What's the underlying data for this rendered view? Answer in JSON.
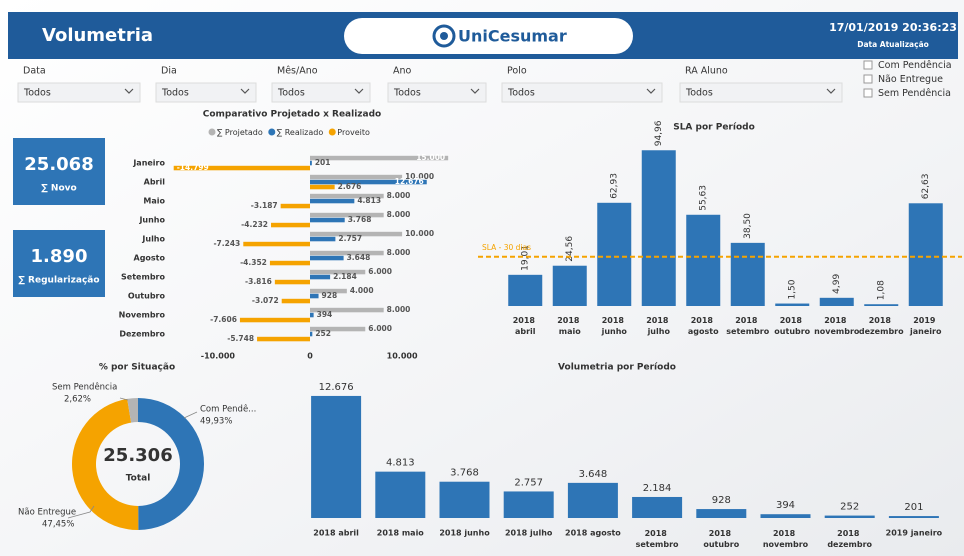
{
  "header": {
    "title": "Volumetria",
    "logo": "UniCesumar",
    "updated": "17/01/2019 20:36:23",
    "updated_label": "Data Atualização"
  },
  "filters": [
    {
      "label": "Data",
      "value": "Todos"
    },
    {
      "label": "Dia",
      "value": "Todos"
    },
    {
      "label": "Mês/Ano",
      "value": "Todos"
    },
    {
      "label": "Ano",
      "value": "Todos"
    },
    {
      "label": "Polo",
      "value": "Todos"
    },
    {
      "label": "RA Aluno",
      "value": "Todos"
    }
  ],
  "checkboxes": [
    "Com Pendência",
    "Não Entregue",
    "Sem Pendência"
  ],
  "kpis": [
    {
      "value": "25.068",
      "label": "∑ Novo"
    },
    {
      "value": "1.890",
      "label": "∑ Regularização"
    }
  ],
  "chart_data": [
    {
      "type": "bar",
      "orientation": "horizontal",
      "title": "Comparativo Projetado x Realizado",
      "categories": [
        "Janeiro",
        "Abril",
        "Maio",
        "Junho",
        "Julho",
        "Agosto",
        "Setembro",
        "Outubro",
        "Novembro",
        "Dezembro"
      ],
      "series": [
        {
          "name": "∑ Projetado",
          "color": "#b4b4b4",
          "values": [
            15000,
            10000,
            8000,
            8000,
            10000,
            8000,
            6000,
            4000,
            8000,
            6000
          ],
          "value_labels": [
            "15.000",
            "10.000",
            "8.000",
            "8.000",
            "10.000",
            "8.000",
            "6.000",
            "4.000",
            "8.000",
            "6.000"
          ]
        },
        {
          "name": "∑ Realizado",
          "color": "#2e75b6",
          "values": [
            201,
            12676,
            4813,
            3768,
            2757,
            3648,
            2184,
            928,
            394,
            252
          ],
          "value_labels": [
            "201",
            "12.676",
            "4.813",
            "3.768",
            "2.757",
            "3.648",
            "2.184",
            "928",
            "394",
            "252"
          ]
        },
        {
          "name": "Proveito",
          "color": "#f5a300",
          "values": [
            -14799,
            2676,
            -3187,
            -4232,
            -7243,
            -4352,
            -3816,
            -3072,
            -7606,
            -5748
          ],
          "value_labels": [
            "-14.799",
            "2.676",
            "-3.187",
            "-4.232",
            "-7.243",
            "-4.352",
            "-3.816",
            "-3.072",
            "-7.606",
            "-5.748"
          ]
        }
      ],
      "xlim": [
        -15200,
        15200
      ],
      "xticks": [
        {
          "value": -10000,
          "label": "-10.000"
        },
        0,
        {
          "value": 10000,
          "label": "10.000"
        }
      ]
    },
    {
      "type": "bar",
      "title": "SLA por Período",
      "categories": [
        "2018 abril",
        "2018 maio",
        "2018 junho",
        "2018 julho",
        "2018 agosto",
        "2018 setembro",
        "2018 outubro",
        "2018 novembro",
        "2018 dezembro",
        "2019 janeiro"
      ],
      "values": [
        19.01,
        24.56,
        62.93,
        94.96,
        55.63,
        38.5,
        1.5,
        4.99,
        1.08,
        62.63
      ],
      "value_labels": [
        "19,01",
        "24,56",
        "62,93",
        "94,96",
        "55,63",
        "38,50",
        "1,50",
        "4,99",
        "1,08",
        "62,63"
      ],
      "color": "#2e75b6",
      "ylim": [
        0,
        100
      ],
      "reference_line": {
        "value": 30,
        "label": "SLA - 30 dias",
        "color": "#f5a300"
      }
    },
    {
      "type": "pie",
      "donut": true,
      "title": "% por Situação",
      "categories": [
        "Com Pendê...",
        "Não Entregue",
        "Sem Pendência"
      ],
      "values": [
        49.93,
        47.45,
        2.62
      ],
      "value_labels": [
        "49,93%",
        "47,45%",
        "2,62%"
      ],
      "colors": [
        "#2e75b6",
        "#f5a300",
        "#b4b4b4"
      ],
      "total": "25.306",
      "total_caption": "Total"
    },
    {
      "type": "bar",
      "title": "Volumetria por Período",
      "categories": [
        "2018 abril",
        "2018 maio",
        "2018 junho",
        "2018 julho",
        "2018 agosto",
        "2018 setembro",
        "2018 outubro",
        "2018 novembro",
        "2018 dezembro",
        "2019 janeiro"
      ],
      "values": [
        12676,
        4813,
        3768,
        2757,
        3648,
        2184,
        928,
        394,
        252,
        201
      ],
      "value_labels": [
        "12.676",
        "4.813",
        "3.768",
        "2.757",
        "3.648",
        "2.184",
        "928",
        "394",
        "252",
        "201"
      ],
      "color": "#2e75b6",
      "ylim": [
        0,
        13500
      ]
    }
  ]
}
